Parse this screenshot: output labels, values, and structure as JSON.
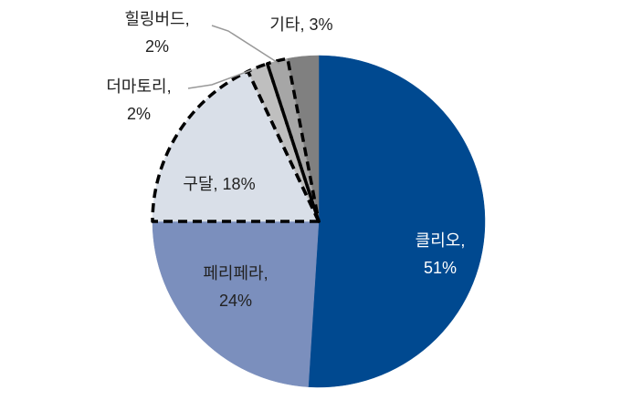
{
  "chart_data": {
    "type": "pie",
    "labels": [
      [
        "클리오,",
        "51%"
      ],
      [
        "페리페라,",
        "24%"
      ],
      [
        "구달, 18%"
      ],
      [
        "더마토리,",
        "2%"
      ],
      [
        "힐링버드,",
        "2%"
      ],
      [
        "기타, 3%"
      ]
    ],
    "values": [
      51,
      24,
      18,
      2,
      2,
      3
    ],
    "colors": [
      "#004990",
      "#7b8fbd",
      "#d9dfe8",
      "#bfbfbf",
      "#a6a6a6",
      "#808080"
    ],
    "label_colors": [
      "#ffffff",
      "#222222",
      "#222222",
      "#222222",
      "#222222",
      "#222222"
    ],
    "dashed_outline": [
      false,
      false,
      true,
      true,
      true,
      false
    ]
  }
}
